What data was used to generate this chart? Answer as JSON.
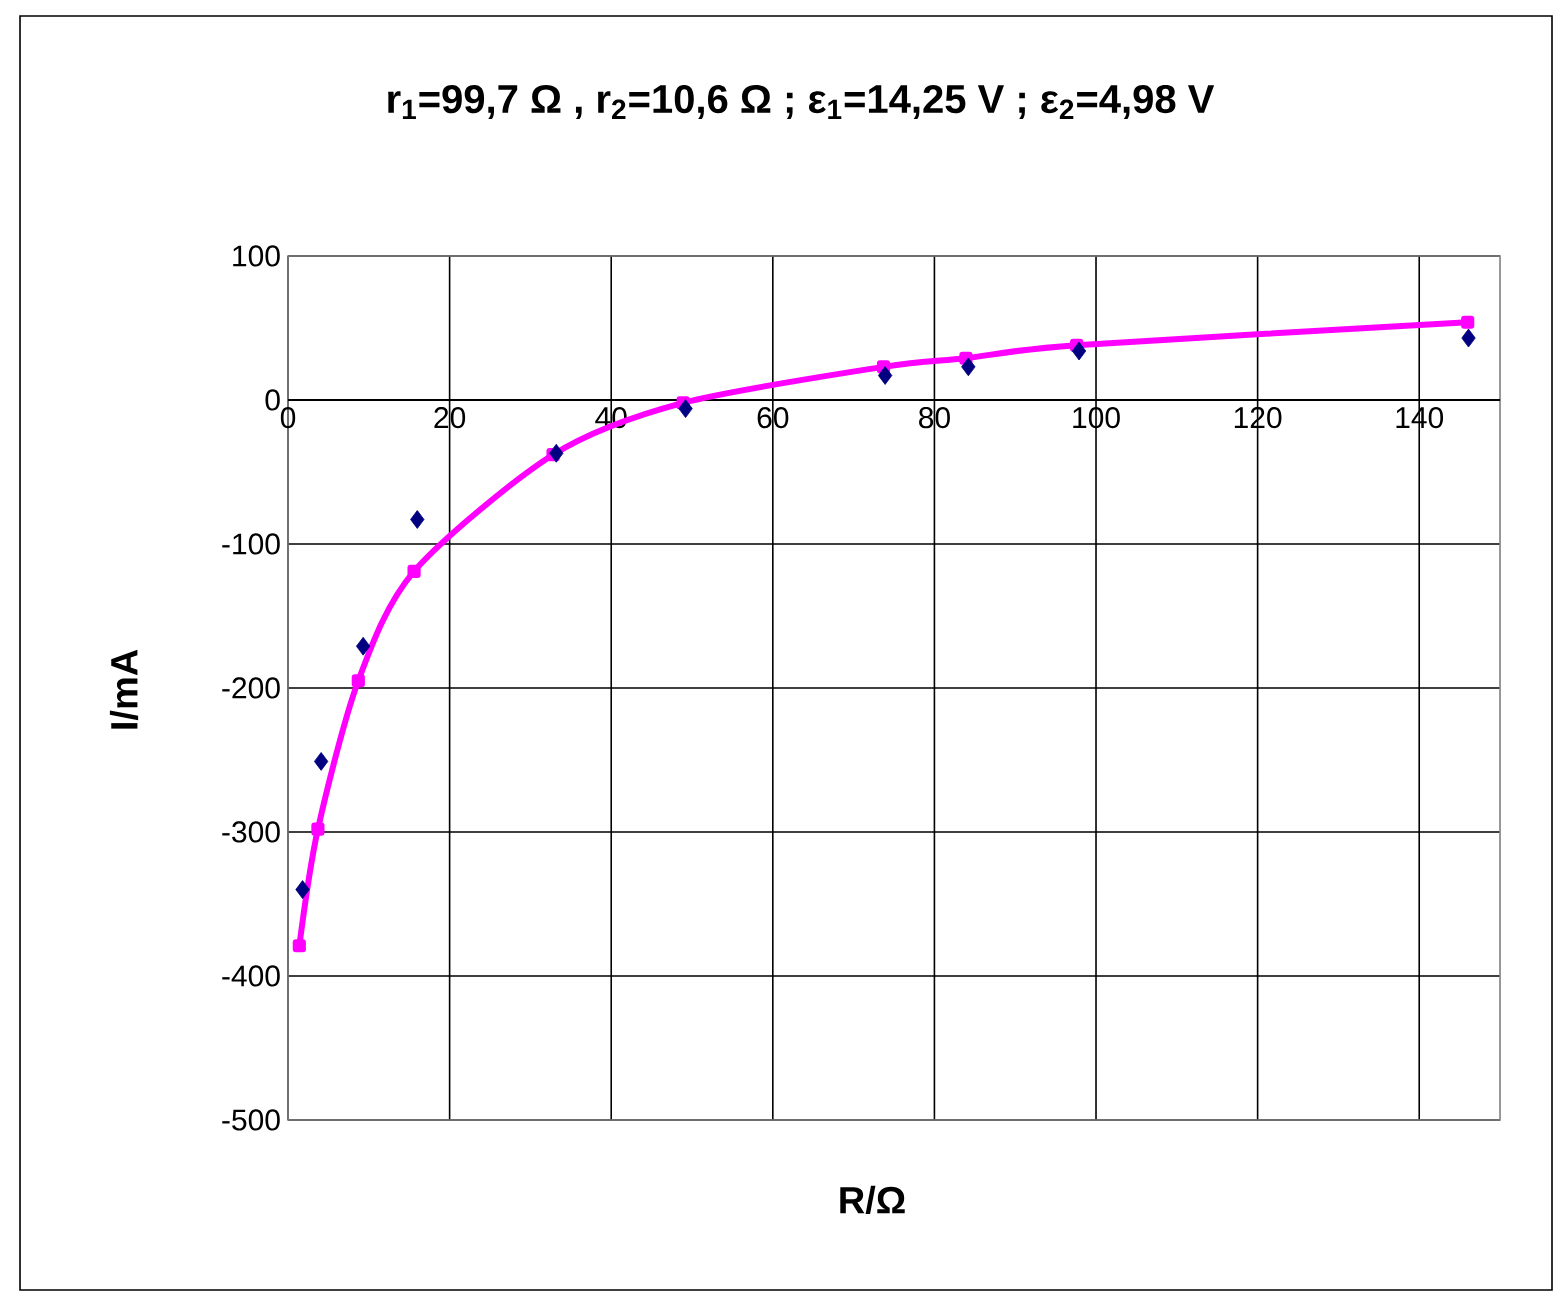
{
  "chart_data": {
    "type": "scatter",
    "title": "r$_{1}$=99,7 Ω , r$_{2}$=10,6 Ω ; ε$_{1}$=14,25 V ; ε$_{2}$=4,98 V",
    "xlabel": "R/Ω",
    "ylabel": "I/mA",
    "xlim": [
      0,
      150
    ],
    "xticks": [
      0,
      20,
      40,
      60,
      80,
      100,
      120,
      140
    ],
    "ylim": [
      -500,
      100
    ],
    "yticks": [
      -500,
      -400,
      -300,
      -200,
      -100,
      0,
      100
    ],
    "grid": true,
    "series": [
      {
        "color": "#000080",
        "marker": "diamond",
        "x": [
          1.8,
          4.1,
          9.3,
          16,
          33.2,
          49.2,
          73.9,
          84.2,
          97.9,
          146.1
        ],
        "values": [
          -340,
          -251,
          -171,
          -83,
          -37,
          -6,
          17,
          23,
          34,
          43
        ]
      },
      {
        "type": "line",
        "color": "#ff00ff",
        "marker": "square",
        "x": [
          1.4,
          3.7,
          8.7,
          15.6,
          32.8,
          48.9,
          73.7,
          83.9,
          97.6,
          146
        ],
        "values": [
          -379,
          -298,
          -195,
          -119,
          -38,
          -2,
          23,
          29,
          38,
          54
        ]
      }
    ]
  }
}
